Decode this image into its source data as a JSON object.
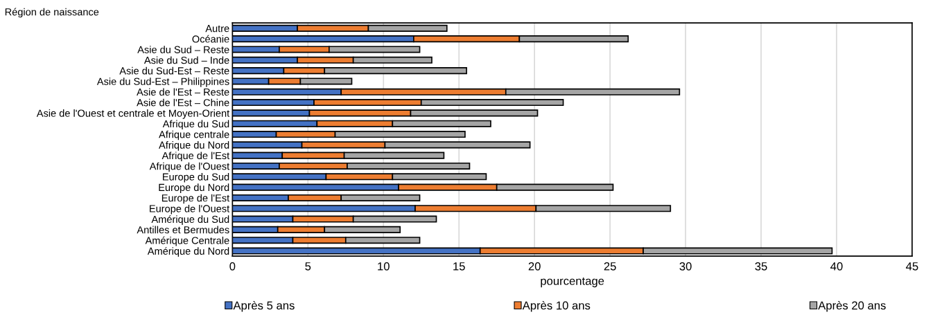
{
  "chart_data": {
    "type": "bar",
    "orientation": "horizontal",
    "stacked": true,
    "title": "Région de naissance",
    "xlabel": "pourcentage",
    "categories": [
      "Autre",
      "Océanie",
      "Asie du Sud – Reste",
      "Asie du Sud – Inde",
      "Asie du Sud-Est – Reste",
      "Asie du Sud-Est – Philippines",
      "Asie de l'Est – Reste",
      "Asie de l'Est – Chine",
      "Asie de l'Ouest et centrale et Moyen-Orient",
      "Afrique du Sud",
      "Afrique centrale",
      "Afrique du Nord",
      "Afrique de l'Est",
      "Afrique de l'Ouest",
      "Europe du Sud",
      "Europe du Nord",
      "Europe de l'Est",
      "Europe de l'Ouest",
      "Amérique du Sud",
      "Antilles et Bermudes",
      "Amérique Centrale",
      "Amérique du Nord"
    ],
    "series": [
      {
        "name": "Après 5 ans",
        "color": "#4472c4",
        "values": [
          4.3,
          12.0,
          3.1,
          4.3,
          3.4,
          2.4,
          7.2,
          5.4,
          5.1,
          5.6,
          2.9,
          4.6,
          3.3,
          3.1,
          6.2,
          11.0,
          3.7,
          12.1,
          4.0,
          3.0,
          4.0,
          16.4
        ]
      },
      {
        "name": "Après 10 ans",
        "color": "#ed7d31",
        "values": [
          4.7,
          7.0,
          3.3,
          3.7,
          2.7,
          2.1,
          10.9,
          7.1,
          6.7,
          5.0,
          3.9,
          5.5,
          4.1,
          4.5,
          4.4,
          6.5,
          3.5,
          8.0,
          4.0,
          3.1,
          3.5,
          10.8
        ]
      },
      {
        "name": "Après 20 ans",
        "color": "#a5a5a5",
        "values": [
          5.2,
          7.2,
          6.0,
          5.2,
          9.4,
          3.4,
          11.5,
          9.4,
          8.4,
          6.5,
          8.6,
          9.6,
          6.6,
          8.1,
          6.2,
          7.7,
          5.2,
          8.9,
          5.5,
          5.0,
          4.9,
          12.5
        ]
      }
    ],
    "xlim": [
      0,
      45
    ],
    "xticks": [
      0,
      5,
      10,
      15,
      20,
      25,
      30,
      35,
      40,
      45
    ],
    "grid": "x",
    "legend": "bottom"
  }
}
